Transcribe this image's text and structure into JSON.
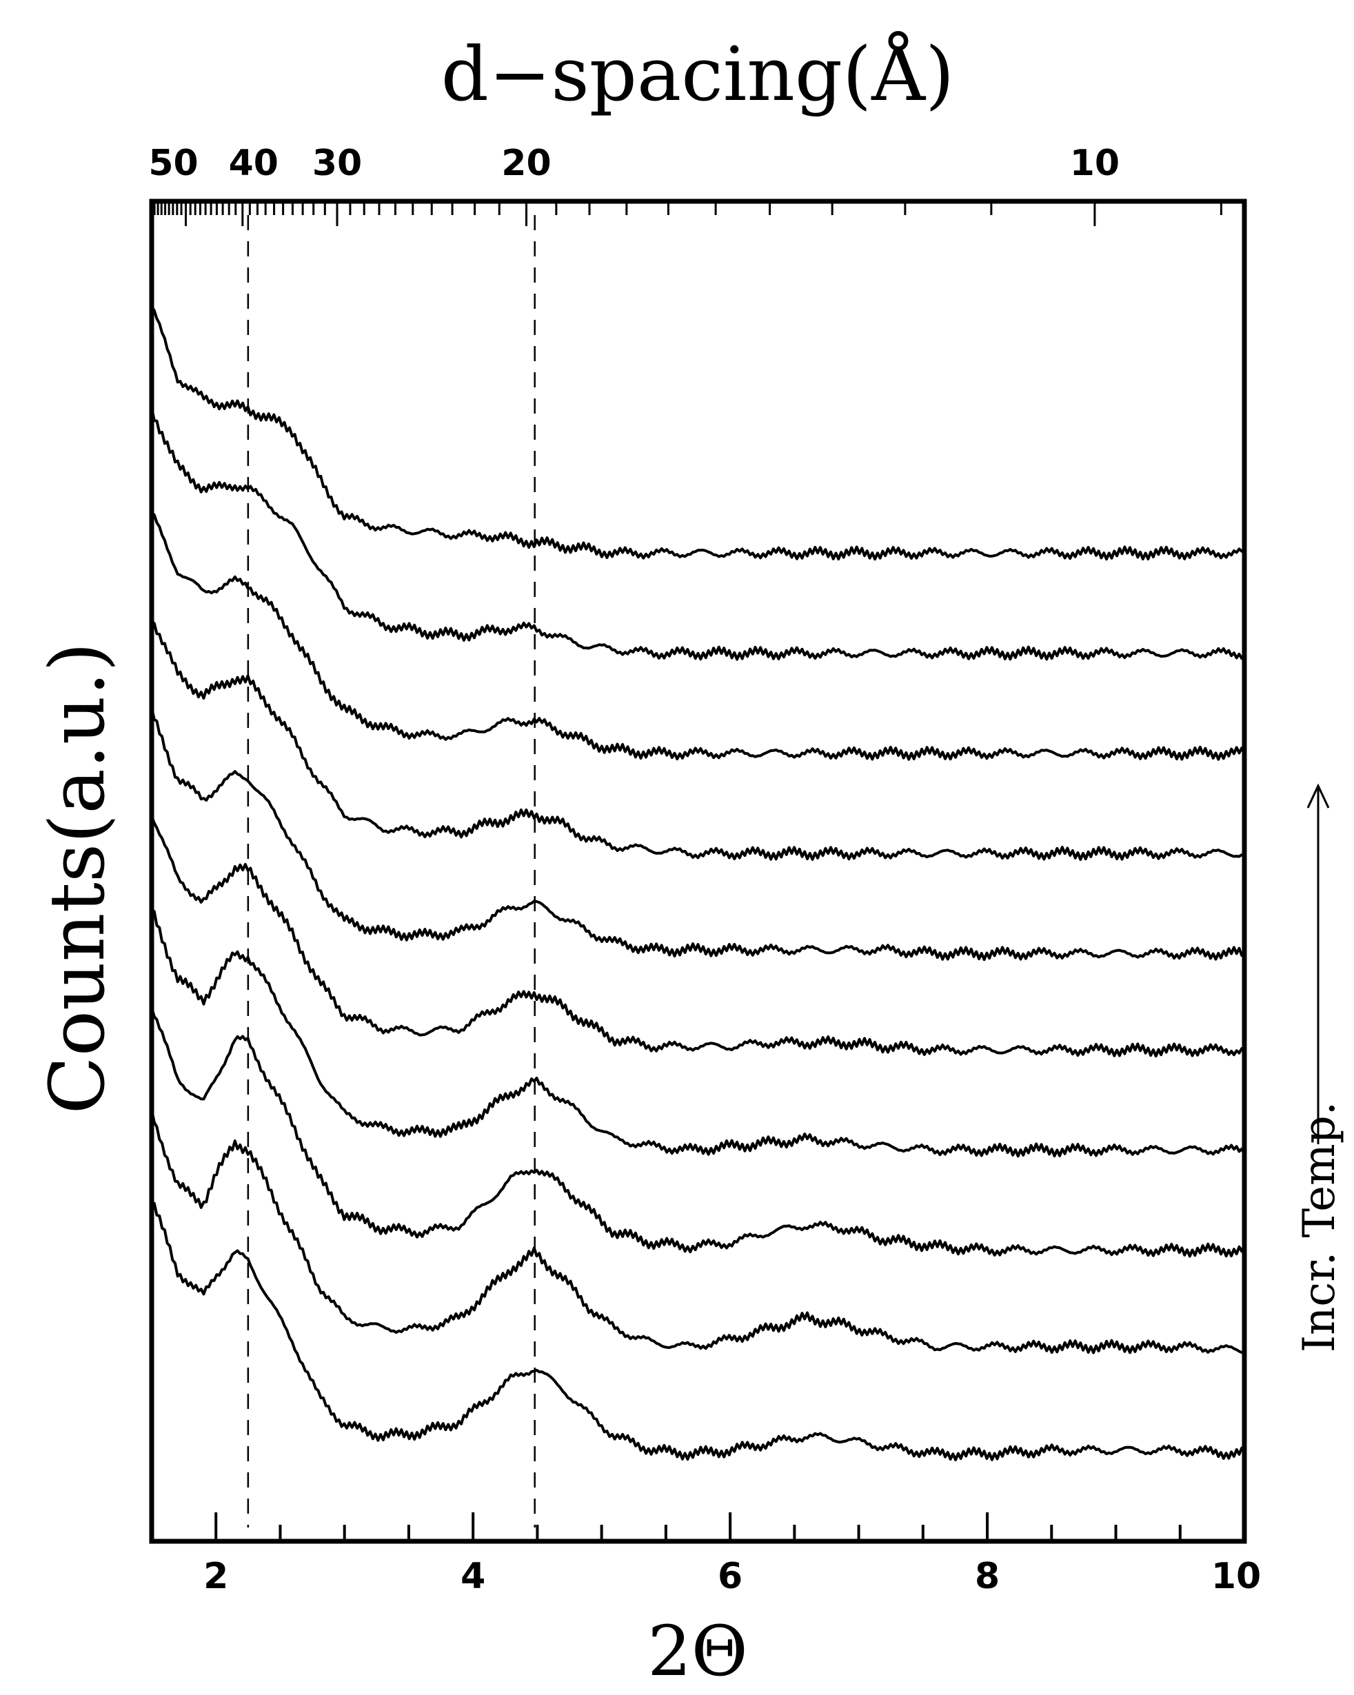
{
  "chart_data": {
    "type": "line",
    "title": "",
    "xlabel": "2Θ",
    "ylabel": "Counts(a.u.)",
    "top_axis_label": "d−spacing(Å)",
    "side_annotation": "Incr. Temp.",
    "xlim": [
      1.5,
      10
    ],
    "x_ticks": [
      2,
      4,
      6,
      8,
      10
    ],
    "x_tick_labels": [
      "2",
      "4",
      "6",
      "8",
      "10"
    ],
    "top_ticks_d_spacing": [
      50,
      40,
      30,
      20,
      10
    ],
    "top_tick_labels": [
      "50",
      "40",
      "30",
      "20",
      "10"
    ],
    "reference_lines_2theta": [
      2.25,
      4.48
    ],
    "grid": false,
    "legend": "none",
    "colors": {
      "line": "#000000",
      "background": "#ffffff"
    },
    "series_order": "bottom trace lowest temperature; temperature increases upward",
    "series": [
      {
        "x": [
          1.5,
          1.7,
          1.9,
          2.0,
          2.15,
          2.25,
          2.4,
          2.6,
          2.8,
          3.0,
          3.3,
          3.6,
          3.9,
          4.1,
          4.3,
          4.48,
          4.7,
          4.9,
          5.1,
          5.4,
          5.7,
          6.0,
          6.3,
          6.6,
          6.9,
          7.2,
          7.6,
          8.0,
          8.5,
          9.0,
          9.5,
          10.0
        ],
        "y": [
          0.75,
          0.55,
          0.48,
          0.54,
          0.6,
          0.58,
          0.48,
          0.35,
          0.2,
          0.12,
          0.09,
          0.1,
          0.13,
          0.19,
          0.25,
          0.28,
          0.22,
          0.15,
          0.09,
          0.05,
          0.04,
          0.05,
          0.07,
          0.09,
          0.08,
          0.06,
          0.04,
          0.04,
          0.05,
          0.05,
          0.05,
          0.04
        ]
      },
      {
        "x": [
          1.5,
          1.7,
          1.9,
          2.0,
          2.15,
          2.25,
          2.4,
          2.6,
          2.8,
          3.0,
          3.3,
          3.6,
          3.9,
          4.1,
          4.3,
          4.48,
          4.7,
          4.9,
          5.1,
          5.4,
          5.7,
          6.0,
          6.3,
          6.6,
          6.9,
          7.2,
          7.6,
          8.0,
          8.5,
          9.0,
          9.5,
          10.0
        ],
        "y": [
          0.72,
          0.52,
          0.47,
          0.55,
          0.64,
          0.62,
          0.52,
          0.38,
          0.24,
          0.15,
          0.12,
          0.12,
          0.15,
          0.22,
          0.29,
          0.33,
          0.26,
          0.18,
          0.12,
          0.08,
          0.07,
          0.09,
          0.12,
          0.15,
          0.13,
          0.1,
          0.07,
          0.07,
          0.07,
          0.07,
          0.07,
          0.06
        ]
      },
      {
        "x": [
          1.5,
          1.7,
          1.9,
          2.0,
          2.15,
          2.25,
          2.4,
          2.6,
          2.8,
          3.0,
          3.3,
          3.6,
          3.9,
          4.1,
          4.3,
          4.48,
          4.7,
          4.9,
          5.1,
          5.4,
          5.7,
          6.0,
          6.3,
          6.6,
          6.9,
          7.2,
          7.6,
          8.0,
          8.5,
          9.0,
          9.5,
          10.0
        ],
        "y": [
          0.75,
          0.55,
          0.48,
          0.55,
          0.66,
          0.65,
          0.55,
          0.42,
          0.27,
          0.17,
          0.13,
          0.12,
          0.14,
          0.2,
          0.27,
          0.3,
          0.25,
          0.18,
          0.12,
          0.09,
          0.08,
          0.09,
          0.12,
          0.14,
          0.13,
          0.1,
          0.08,
          0.07,
          0.07,
          0.07,
          0.07,
          0.07
        ]
      },
      {
        "x": [
          1.5,
          1.7,
          1.9,
          2.0,
          2.15,
          2.25,
          2.4,
          2.6,
          2.8,
          3.0,
          3.3,
          3.6,
          3.9,
          4.1,
          4.3,
          4.48,
          4.7,
          4.9,
          5.1,
          5.4,
          5.7,
          6.0,
          6.3,
          6.6,
          6.9,
          7.2,
          7.6,
          8.0,
          8.5,
          9.0,
          9.5,
          10.0
        ],
        "y": [
          0.75,
          0.56,
          0.5,
          0.55,
          0.63,
          0.62,
          0.54,
          0.42,
          0.28,
          0.18,
          0.14,
          0.13,
          0.14,
          0.19,
          0.24,
          0.27,
          0.22,
          0.16,
          0.11,
          0.09,
          0.08,
          0.09,
          0.1,
          0.11,
          0.1,
          0.09,
          0.08,
          0.08,
          0.08,
          0.08,
          0.08,
          0.08
        ]
      },
      {
        "x": [
          1.5,
          1.7,
          1.9,
          2.0,
          2.15,
          2.25,
          2.4,
          2.6,
          2.8,
          3.0,
          3.3,
          3.6,
          3.9,
          4.1,
          4.3,
          4.48,
          4.7,
          4.9,
          5.1,
          5.4,
          5.7,
          6.0,
          6.3,
          6.6,
          6.9,
          7.2,
          7.6,
          8.0,
          8.5,
          9.0,
          9.5,
          10.0
        ],
        "y": [
          0.75,
          0.57,
          0.5,
          0.54,
          0.6,
          0.59,
          0.52,
          0.41,
          0.28,
          0.19,
          0.15,
          0.14,
          0.15,
          0.19,
          0.23,
          0.25,
          0.21,
          0.16,
          0.12,
          0.1,
          0.1,
          0.1,
          0.11,
          0.11,
          0.11,
          0.1,
          0.09,
          0.09,
          0.09,
          0.09,
          0.09,
          0.09
        ]
      },
      {
        "x": [
          1.5,
          1.7,
          1.9,
          2.0,
          2.15,
          2.25,
          2.4,
          2.6,
          2.8,
          3.0,
          3.3,
          3.6,
          3.9,
          4.1,
          4.3,
          4.48,
          4.7,
          4.9,
          5.1,
          5.4,
          5.7,
          6.0,
          6.3,
          6.6,
          6.9,
          7.2,
          7.6,
          8.0,
          8.5,
          9.0,
          9.5,
          10.0
        ],
        "y": [
          0.76,
          0.58,
          0.52,
          0.55,
          0.59,
          0.58,
          0.51,
          0.4,
          0.27,
          0.18,
          0.15,
          0.14,
          0.15,
          0.18,
          0.22,
          0.23,
          0.19,
          0.15,
          0.12,
          0.1,
          0.1,
          0.1,
          0.1,
          0.1,
          0.1,
          0.1,
          0.09,
          0.09,
          0.09,
          0.09,
          0.09,
          0.09
        ]
      },
      {
        "x": [
          1.5,
          1.7,
          1.9,
          2.0,
          2.15,
          2.25,
          2.4,
          2.6,
          2.8,
          3.0,
          3.3,
          3.6,
          3.9,
          4.1,
          4.3,
          4.48,
          4.7,
          4.9,
          5.1,
          5.4,
          5.7,
          6.0,
          6.3,
          6.6,
          6.9,
          7.2,
          7.6,
          8.0,
          8.5,
          9.0,
          9.5,
          10.0
        ],
        "y": [
          0.76,
          0.6,
          0.54,
          0.56,
          0.59,
          0.58,
          0.52,
          0.42,
          0.3,
          0.21,
          0.17,
          0.16,
          0.16,
          0.18,
          0.2,
          0.21,
          0.18,
          0.14,
          0.12,
          0.11,
          0.1,
          0.1,
          0.1,
          0.1,
          0.1,
          0.1,
          0.1,
          0.1,
          0.1,
          0.1,
          0.1,
          0.1
        ]
      },
      {
        "x": [
          1.5,
          1.7,
          1.9,
          2.0,
          2.15,
          2.25,
          2.4,
          2.6,
          2.8,
          3.0,
          3.3,
          3.6,
          3.9,
          4.1,
          4.3,
          4.48,
          4.7,
          4.9,
          5.1,
          5.4,
          5.7,
          6.0,
          6.3,
          6.6,
          6.9,
          7.2,
          7.6,
          8.0,
          8.5,
          9.0,
          9.5,
          10.0
        ],
        "y": [
          0.78,
          0.62,
          0.56,
          0.57,
          0.59,
          0.58,
          0.53,
          0.44,
          0.32,
          0.23,
          0.18,
          0.16,
          0.16,
          0.18,
          0.2,
          0.2,
          0.17,
          0.14,
          0.12,
          0.11,
          0.11,
          0.11,
          0.11,
          0.11,
          0.11,
          0.11,
          0.11,
          0.11,
          0.11,
          0.11,
          0.11,
          0.11
        ]
      },
      {
        "x": [
          1.5,
          1.7,
          1.9,
          2.0,
          2.15,
          2.25,
          2.4,
          2.6,
          2.8,
          3.0,
          3.3,
          3.6,
          3.9,
          4.1,
          4.3,
          4.48,
          4.7,
          4.9,
          5.1,
          5.4,
          5.7,
          6.0,
          6.3,
          6.6,
          6.9,
          7.2,
          7.6,
          8.0,
          8.5,
          9.0,
          9.5,
          10.0
        ],
        "y": [
          0.8,
          0.64,
          0.58,
          0.58,
          0.59,
          0.58,
          0.54,
          0.47,
          0.36,
          0.25,
          0.2,
          0.18,
          0.17,
          0.18,
          0.19,
          0.19,
          0.16,
          0.14,
          0.13,
          0.12,
          0.12,
          0.12,
          0.12,
          0.12,
          0.12,
          0.12,
          0.12,
          0.12,
          0.12,
          0.12,
          0.12,
          0.12
        ]
      },
      {
        "x": [
          1.5,
          1.7,
          1.9,
          2.0,
          2.15,
          2.25,
          2.4,
          2.6,
          2.8,
          3.0,
          3.3,
          3.6,
          3.9,
          4.1,
          4.3,
          4.48,
          4.7,
          4.9,
          5.1,
          5.4,
          5.7,
          6.0,
          6.3,
          6.6,
          6.9,
          7.2,
          7.6,
          8.0,
          8.5,
          9.0,
          9.5,
          10.0
        ],
        "y": [
          0.82,
          0.62,
          0.56,
          0.55,
          0.54,
          0.53,
          0.51,
          0.47,
          0.34,
          0.23,
          0.2,
          0.19,
          0.18,
          0.18,
          0.17,
          0.16,
          0.15,
          0.14,
          0.13,
          0.13,
          0.13,
          0.13,
          0.13,
          0.13,
          0.13,
          0.13,
          0.13,
          0.13,
          0.13,
          0.13,
          0.13,
          0.13
        ]
      }
    ]
  }
}
